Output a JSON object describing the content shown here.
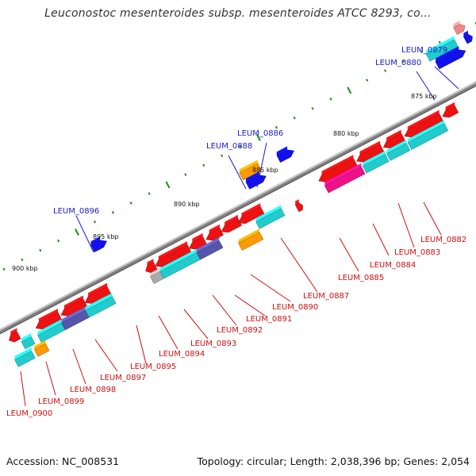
{
  "title": "Leuconostoc mesenteroides subsp. mesenteroides ATCC 8293, co...",
  "footer": {
    "accession": "Accession: NC_008531",
    "topology": "Topology: circular; Length: 2,038,396 bp; Genes: 2,054"
  },
  "colors": {
    "backbone": "#808080",
    "red": "#ee1111",
    "cyan": "#22cccc",
    "blue": "#1111ee",
    "orange": "#ff9900",
    "magenta": "#ee1188",
    "purple": "#5555aa",
    "gray": "#aaaaaa",
    "pink": "#ee8888",
    "tick": "#228822",
    "blue_label": "#1a1acc",
    "red_label": "#cc1111"
  },
  "kbp_labels": [
    "875 kbp",
    "880 kbp",
    "885 kbp",
    "890 kbp",
    "895 kbp",
    "900 kbp"
  ],
  "blue_labels": [
    "LEUM_0879",
    "LEUM_0880",
    "LEUM_0886",
    "LEUM_0888",
    "LEUM_0896"
  ],
  "red_labels": [
    "LEUM_0882",
    "LEUM_0883",
    "LEUM_0884",
    "LEUM_0885",
    "LEUM_0887",
    "LEUM_0890",
    "LEUM_0891",
    "LEUM_0892",
    "LEUM_0893",
    "LEUM_0894",
    "LEUM_0895",
    "LEUM_0897",
    "LEUM_0898",
    "LEUM_0899",
    "LEUM_0900"
  ]
}
